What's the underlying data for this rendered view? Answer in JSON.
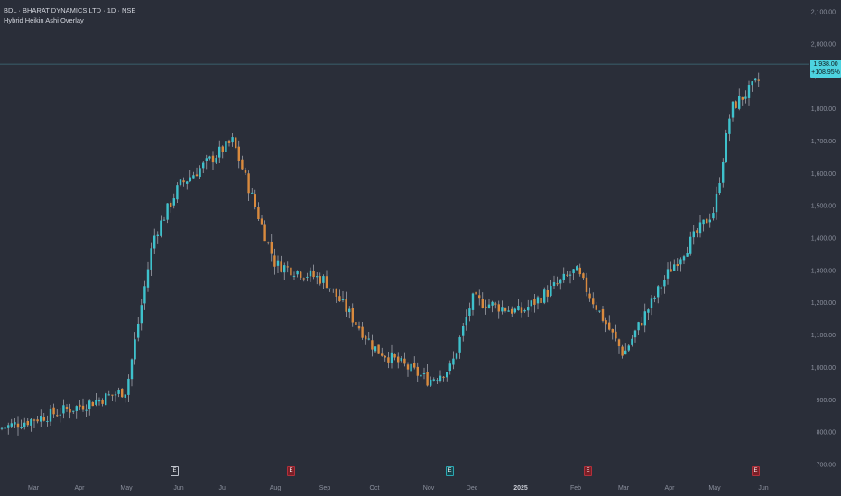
{
  "header": {
    "symbol_line": "BDL · BHARAT DYNAMICS LTD · 1D · NSE",
    "indicator": "Hybrid Heikin Ashi Overlay"
  },
  "price_badge": {
    "price": "1,938.00",
    "change": "+108.95%"
  },
  "events": [
    {
      "after_label": "Jun",
      "type": "earnings",
      "letter": "E",
      "color": "#2a2e39",
      "border": "#bfc3cc"
    },
    {
      "after_label": "Aug",
      "type": "earnings",
      "letter": "E",
      "color": "#7a1f27",
      "border": "#b2303b"
    },
    {
      "after_label": "Nov",
      "type": "earnings",
      "letter": "E",
      "color": "#17434a",
      "border": "#2aa7b2"
    },
    {
      "after_label": "Feb",
      "type": "earnings",
      "letter": "E",
      "color": "#7a1f27",
      "border": "#b2303b"
    },
    {
      "after_label": "May",
      "type": "earnings",
      "letter": "E",
      "color": "#7a1f27",
      "border": "#b2303b"
    }
  ],
  "colors": {
    "up": "#3ec1cc",
    "down": "#d98a3e",
    "wick": "#c4c7cf",
    "background": "#2a2e39",
    "price_line": "#3e6e7a"
  },
  "chart_data": {
    "type": "candlestick",
    "x_labels": [
      "Mar",
      "Apr",
      "May",
      "Jun",
      "Jul",
      "Aug",
      "Sep",
      "Oct",
      "Nov",
      "Dec",
      "2025",
      "Feb",
      "Mar",
      "Apr",
      "May",
      "Jun"
    ],
    "y_ticks": [
      "2,100.00",
      "2,000.00",
      "1,900.00",
      "1,800.00",
      "1,700.00",
      "1,600.00",
      "1,500.00",
      "1,400.00",
      "1,300.00",
      "1,200.00",
      "1,100.00",
      "1,000.00",
      "900.00",
      "800.00",
      "700.00"
    ],
    "ylim": [
      700,
      2100
    ],
    "last_price": 1938,
    "anchors": [
      [
        "Mar",
        840
      ],
      [
        "Apr",
        880
      ],
      [
        "May",
        930
      ],
      [
        "May+0.5",
        1400
      ],
      [
        "Jun",
        1560
      ],
      [
        "Jul",
        1700
      ],
      [
        "Jul+0.5",
        1480
      ],
      [
        "Aug",
        1320
      ],
      [
        "Sep",
        1270
      ],
      [
        "Oct",
        1060
      ],
      [
        "Nov",
        960
      ],
      [
        "Nov+0.5",
        1000
      ],
      [
        "Dec",
        1210
      ],
      [
        "2025",
        1170
      ],
      [
        "Feb",
        1300
      ],
      [
        "Mar",
        1040
      ],
      [
        "Mar+0.5",
        1150
      ],
      [
        "Apr",
        1300
      ],
      [
        "May",
        1490
      ],
      [
        "May+0.5",
        1800
      ],
      [
        "Jun",
        1900
      ]
    ]
  }
}
